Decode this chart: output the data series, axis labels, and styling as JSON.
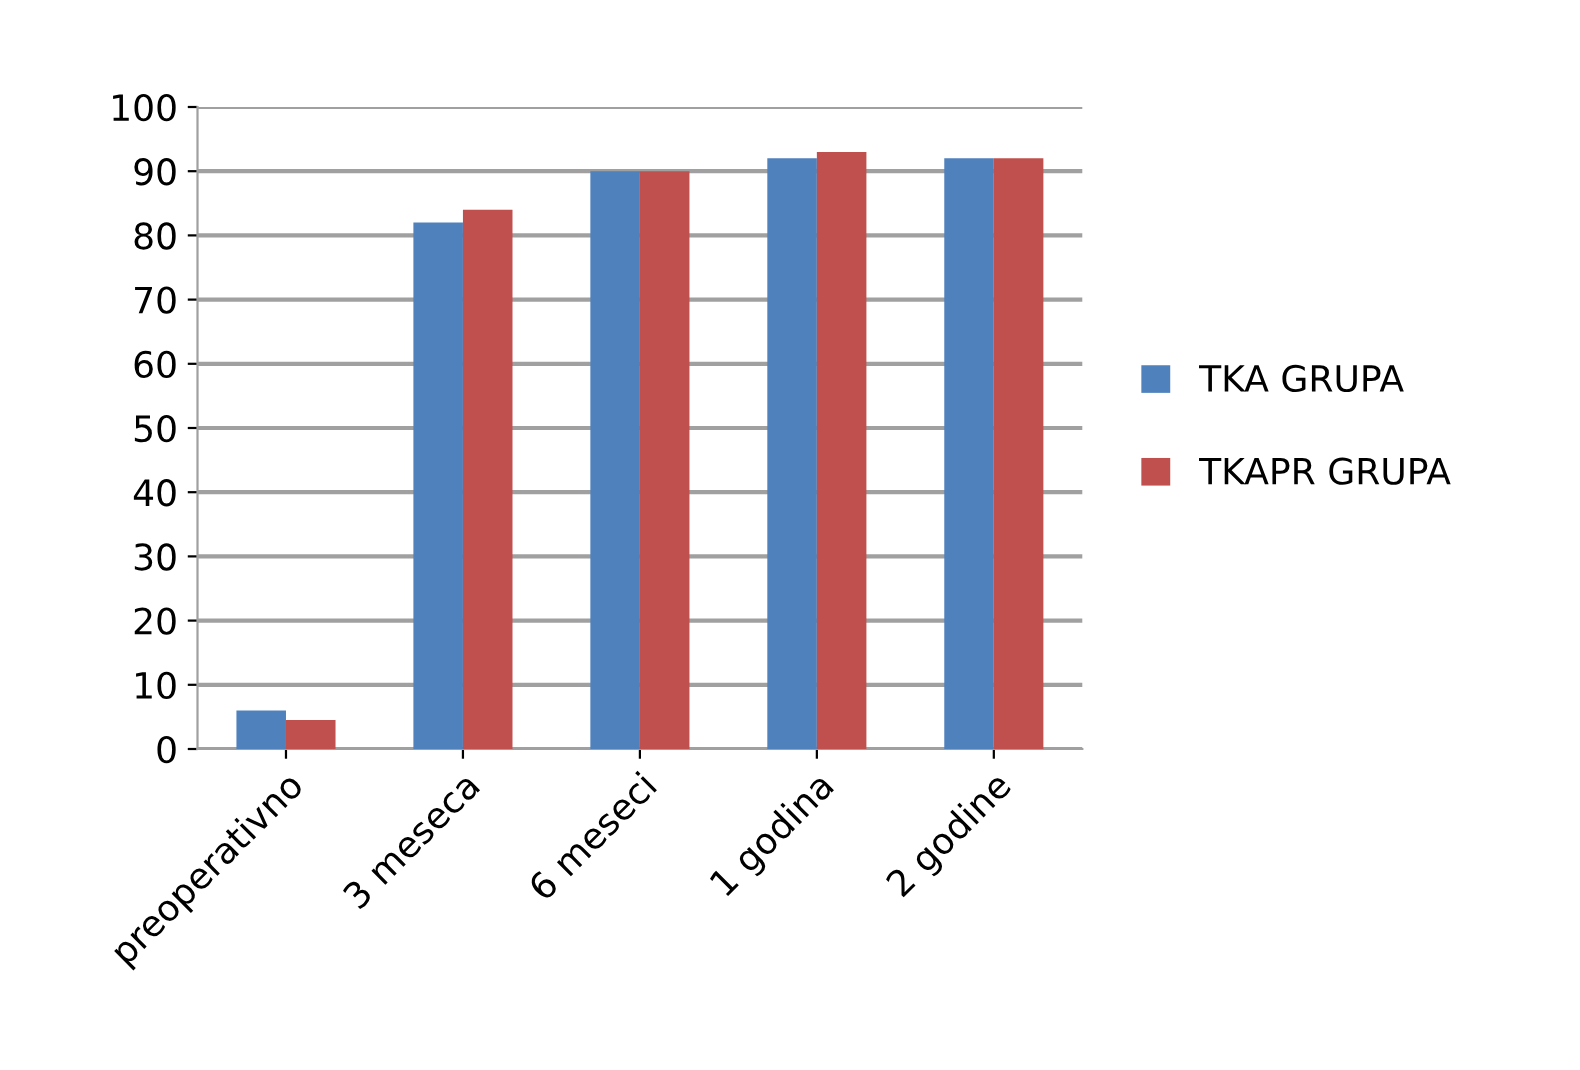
{
  "chart_data": {
    "type": "bar",
    "categories": [
      "preoperativno",
      "3 meseca",
      "6 meseci",
      "1 godina",
      "2 godine"
    ],
    "series": [
      {
        "name": "TKA GRUPA",
        "color": "#4f81bd",
        "values": [
          6,
          82,
          90,
          92,
          92
        ]
      },
      {
        "name": "TKAPR GRUPA",
        "color": "#c0504d",
        "values": [
          4.5,
          84,
          90,
          93,
          92
        ]
      }
    ],
    "ylim": [
      0,
      100
    ],
    "yticks": [
      0,
      10,
      20,
      30,
      40,
      50,
      60,
      70,
      80,
      90,
      100
    ],
    "grid": "y",
    "legend": "right"
  }
}
